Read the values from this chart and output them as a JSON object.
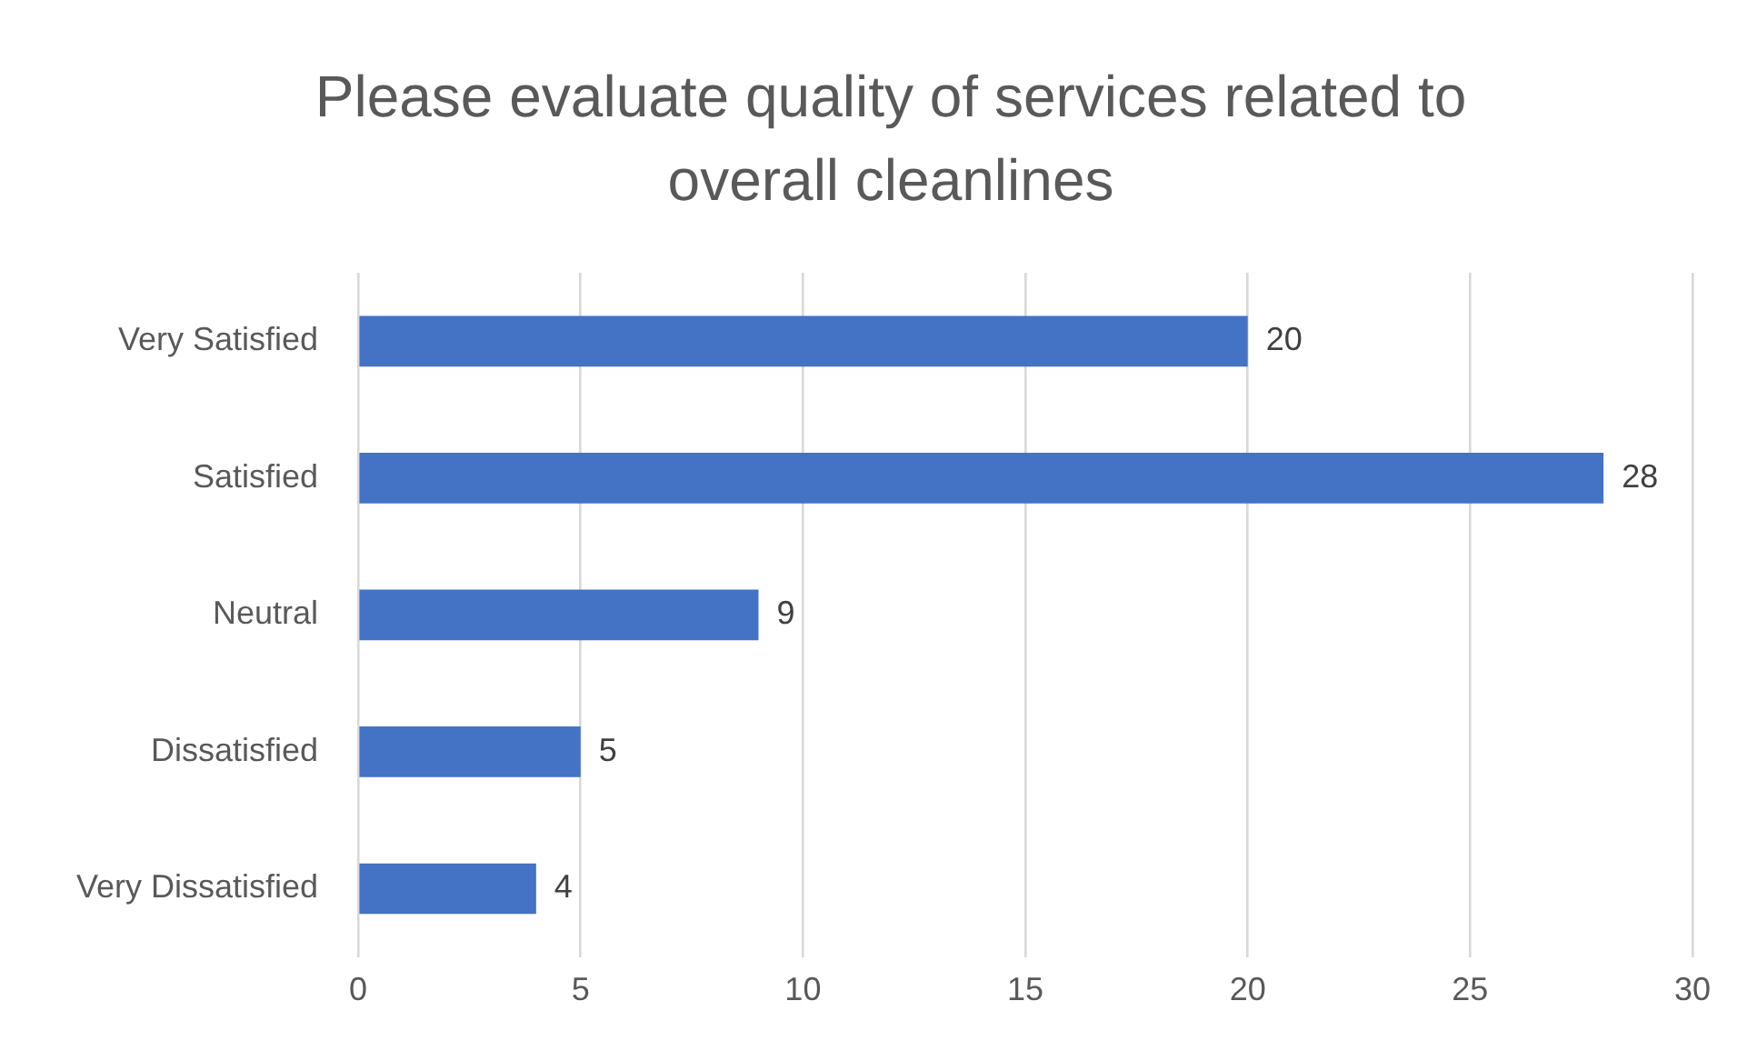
{
  "chart_data": {
    "type": "bar",
    "orientation": "horizontal",
    "title": "Please evaluate quality of services related to overall cleanlines",
    "categories": [
      "Very Satisfied",
      "Satisfied",
      "Neutral",
      "Dissatisfied",
      "Very Dissatisfied"
    ],
    "values": [
      20,
      28,
      9,
      5,
      4
    ],
    "color": "#4472c4",
    "xlim": [
      0,
      30
    ],
    "xticks": [
      0,
      5,
      10,
      15,
      20,
      25,
      30
    ],
    "grid": "x",
    "data_labels": true
  }
}
